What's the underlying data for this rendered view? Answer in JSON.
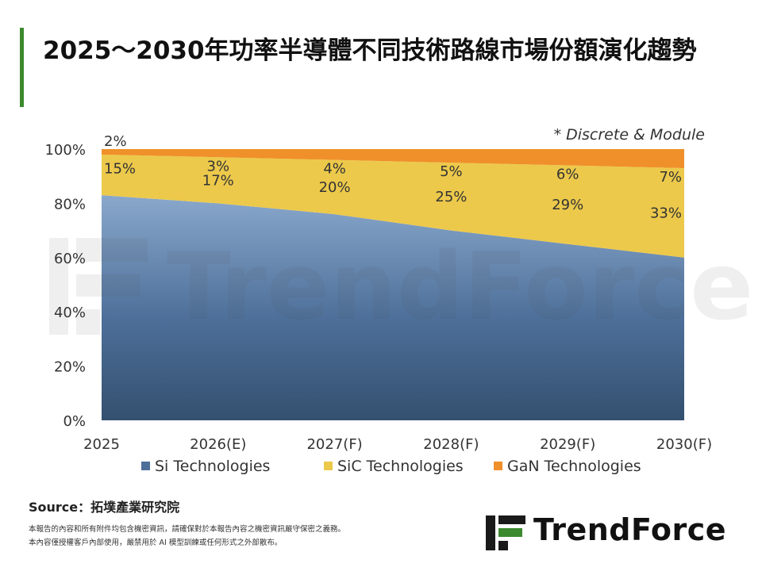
{
  "header": {
    "title": "2025～2030年功率半導體不同技術路線市場份額演化趨勢"
  },
  "footer": {
    "source": "Source：拓墣產業研究院",
    "disclaimer_1": "本報告的內容和所有附件均包含機密資訊，請確保對於本報告內容之機密資訊嚴守保密之義務。",
    "disclaimer_2": "本內容僅授權客戶內部使用，嚴禁用於 AI 模型訓練或任何形式之外部散布。"
  },
  "logo": {
    "text": "TrendForce"
  },
  "watermark": {
    "text": "TrendForce"
  },
  "chart_data": {
    "type": "area",
    "stacked": true,
    "normalized": true,
    "annotation": "* Discrete & Module",
    "categories": [
      "2025",
      "2026(E)",
      "2027(F)",
      "2028(F)",
      "2029(F)",
      "2030(F)"
    ],
    "series": [
      {
        "name": "Si Technologies",
        "values": [
          83,
          80,
          76,
          70,
          65,
          60
        ],
        "color": "#3e5f86",
        "labels": [
          "",
          "",
          "",
          "",
          "",
          ""
        ]
      },
      {
        "name": "SiC Technologies",
        "values": [
          15,
          17,
          20,
          25,
          29,
          33
        ],
        "color": "#ecc94b",
        "labels": [
          "15%",
          "17%",
          "20%",
          "25%",
          "29%",
          "33%"
        ]
      },
      {
        "name": "GaN Technologies",
        "values": [
          2,
          3,
          4,
          5,
          6,
          7
        ],
        "color": "#f0902a",
        "labels": [
          "2%",
          "3%",
          "4%",
          "5%",
          "6%",
          "7%"
        ]
      }
    ],
    "y_ticks": [
      "0%",
      "20%",
      "40%",
      "60%",
      "80%",
      "100%"
    ],
    "ylim": [
      0,
      100
    ],
    "grid": false,
    "legend_position": "bottom"
  }
}
